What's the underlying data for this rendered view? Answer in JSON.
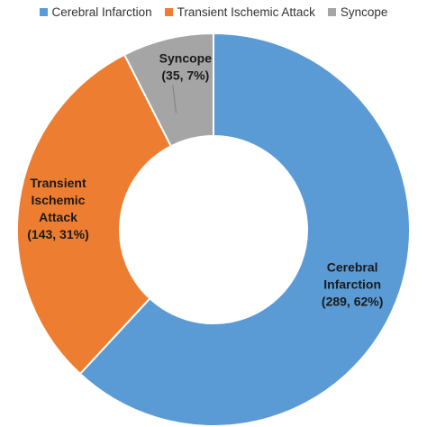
{
  "chart_data": {
    "type": "pie",
    "donut": true,
    "title": "",
    "legend_position": "top",
    "series": [
      {
        "name": "Cerebral Infarction",
        "value": 289,
        "percent": 62,
        "color": "#5b9bd5",
        "label_lines": [
          "Cerebral",
          "Infarction",
          "(289, 62%)"
        ]
      },
      {
        "name": "Transient Ischemic Attack",
        "value": 143,
        "percent": 31,
        "color": "#ed7d31",
        "label_lines": [
          "Transient",
          "Ischemic",
          "Attack",
          "(143, 31%)"
        ]
      },
      {
        "name": "Syncope",
        "value": 35,
        "percent": 7,
        "color": "#a5a5a5",
        "label_lines": [
          "Syncope",
          "(35, 7%)"
        ]
      }
    ]
  }
}
